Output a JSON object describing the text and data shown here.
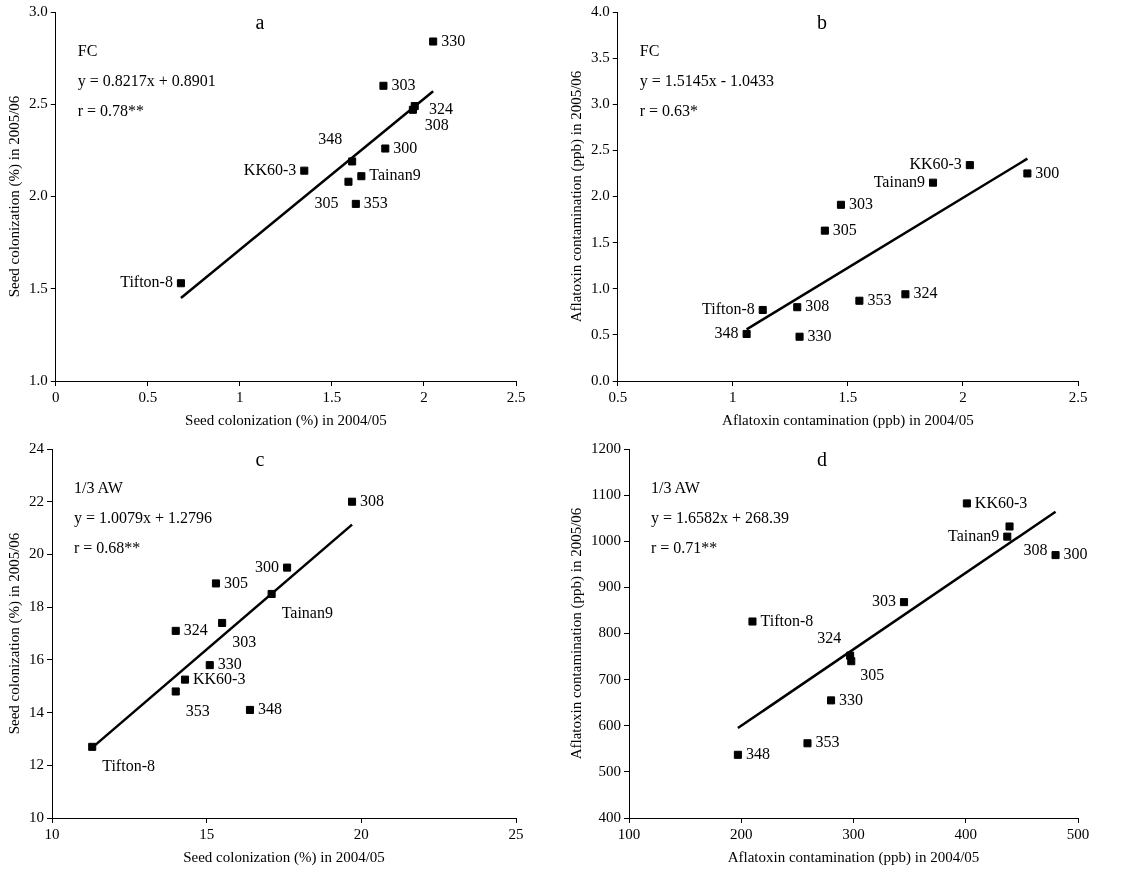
{
  "chart_data": [
    {
      "type": "scatter",
      "title": "a",
      "xlabel": "Seed colonization (%) in 2004/05",
      "ylabel": "Seed colonization (%) in 2005/06",
      "xlim": [
        0,
        2.5
      ],
      "xticks": [
        0,
        0.5,
        1,
        1.5,
        2,
        2.5
      ],
      "ylim": [
        1.0,
        3.0
      ],
      "yticks": [
        {
          "value": 1,
          "label": "1.0"
        },
        1.5,
        {
          "value": 2,
          "label": "2.0"
        },
        2.5,
        {
          "value": 3,
          "label": "3.0"
        }
      ],
      "grid": false,
      "legend": false,
      "series": [
        {
          "type": "scatter",
          "marker": "square",
          "color": "#000000",
          "x": [
            0.68,
            1.35,
            1.61,
            1.59,
            1.66,
            1.63,
            1.79,
            1.78,
            1.95,
            1.94,
            2.05
          ],
          "values": [
            1.53,
            2.14,
            2.19,
            2.08,
            2.11,
            1.96,
            2.26,
            2.6,
            2.49,
            2.47,
            2.84
          ]
        },
        {
          "type": "line",
          "marker": "none",
          "line_style": "solid",
          "color": "#000000",
          "x": [
            0.68,
            2.05
          ],
          "values": [
            1.45,
            2.57
          ]
        }
      ],
      "annotations": [
        "FC",
        "y = 0.8217x + 0.8901",
        "r = 0.78**",
        {
          "text": "Tifton-8",
          "x": 0.68,
          "y": 1.53
        },
        {
          "text": "KK60-3",
          "x": 1.35,
          "y": 2.14
        },
        {
          "text": "348",
          "x": 1.61,
          "y": 2.19
        },
        {
          "text": "305",
          "x": 1.59,
          "y": 2.08
        },
        {
          "text": "Tainan9",
          "x": 1.66,
          "y": 2.11
        },
        {
          "text": "353",
          "x": 1.63,
          "y": 1.96
        },
        {
          "text": "300",
          "x": 1.79,
          "y": 2.26
        },
        {
          "text": "303",
          "x": 1.78,
          "y": 2.6
        },
        {
          "text": "308",
          "x": 1.95,
          "y": 2.49
        },
        {
          "text": "324",
          "x": 1.94,
          "y": 2.47
        },
        {
          "text": "330",
          "x": 2.05,
          "y": 2.84
        }
      ]
    },
    {
      "type": "scatter",
      "title": "b",
      "xlabel": "Aflatoxin contamination (ppb) in 2004/05",
      "ylabel": "Aflatoxin contamination (ppb) in 2005/06",
      "xlim": [
        0.5,
        2.5
      ],
      "xticks": [
        0.5,
        1,
        1.5,
        2,
        2.5
      ],
      "ylim": [
        0,
        4
      ],
      "yticks": [
        {
          "value": 0,
          "label": "0.0"
        },
        0.5,
        {
          "value": 1,
          "label": "1.0"
        },
        1.5,
        {
          "value": 2,
          "label": "2.0"
        },
        2.5,
        {
          "value": 3,
          "label": "3.0"
        },
        3.5,
        {
          "value": 4,
          "label": "4.0"
        }
      ],
      "grid": false,
      "legend": false,
      "series": [
        {
          "type": "scatter",
          "marker": "square",
          "color": "#000000",
          "x": [
            1.13,
            1.06,
            1.28,
            1.29,
            1.4,
            1.47,
            1.55,
            1.75,
            1.87,
            2.03,
            2.28
          ],
          "values": [
            0.77,
            0.51,
            0.8,
            0.48,
            1.63,
            1.91,
            0.87,
            0.94,
            2.15,
            2.34,
            2.25
          ]
        },
        {
          "type": "line",
          "marker": "none",
          "line_style": "solid",
          "color": "#000000",
          "x": [
            1.06,
            2.28
          ],
          "values": [
            0.56,
            2.41
          ]
        }
      ],
      "annotations": [
        "FC",
        "y = 1.5145x - 1.0433",
        "r = 0.63*",
        {
          "text": "Tifton-8",
          "x": 1.13,
          "y": 0.77
        },
        {
          "text": "348",
          "x": 1.06,
          "y": 0.51
        },
        {
          "text": "308",
          "x": 1.28,
          "y": 0.8
        },
        {
          "text": "330",
          "x": 1.29,
          "y": 0.48
        },
        {
          "text": "305",
          "x": 1.4,
          "y": 1.63
        },
        {
          "text": "303",
          "x": 1.47,
          "y": 1.91
        },
        {
          "text": "353",
          "x": 1.55,
          "y": 0.87
        },
        {
          "text": "324",
          "x": 1.75,
          "y": 0.94
        },
        {
          "text": "Tainan9",
          "x": 1.87,
          "y": 2.15
        },
        {
          "text": "KK60-3",
          "x": 2.03,
          "y": 2.34
        },
        {
          "text": "300",
          "x": 2.28,
          "y": 2.25
        }
      ]
    },
    {
      "type": "scatter",
      "title": "c",
      "xlabel": "Seed colonization (%) in 2004/05",
      "ylabel": "Seed colonization (%) in 2005/06",
      "xlim": [
        10,
        25
      ],
      "xticks": [
        10,
        15,
        20,
        25
      ],
      "ylim": [
        10,
        24
      ],
      "yticks": [
        10,
        12,
        14,
        16,
        18,
        20,
        22,
        24
      ],
      "grid": false,
      "legend": false,
      "series": [
        {
          "type": "scatter",
          "marker": "square",
          "color": "#000000",
          "x": [
            11.3,
            14.0,
            14.3,
            14.0,
            15.1,
            15.3,
            15.5,
            16.4,
            17.1,
            17.6,
            19.7
          ],
          "values": [
            12.7,
            14.8,
            15.25,
            17.1,
            15.8,
            18.9,
            17.4,
            14.1,
            18.5,
            19.5,
            22.0
          ]
        },
        {
          "type": "line",
          "marker": "none",
          "line_style": "solid",
          "color": "#000000",
          "x": [
            11.3,
            19.7
          ],
          "values": [
            12.67,
            21.13
          ]
        }
      ],
      "annotations": [
        "1/3 AW",
        "y = 1.0079x + 1.2796",
        "r = 0.68**",
        {
          "text": "Tifton-8",
          "x": 11.3,
          "y": 12.7
        },
        {
          "text": "353",
          "x": 14.0,
          "y": 14.8
        },
        {
          "text": "KK60-3",
          "x": 14.3,
          "y": 15.25
        },
        {
          "text": "324",
          "x": 14.0,
          "y": 17.1
        },
        {
          "text": "330",
          "x": 15.1,
          "y": 15.8
        },
        {
          "text": "305",
          "x": 15.3,
          "y": 18.9
        },
        {
          "text": "303",
          "x": 15.5,
          "y": 17.4
        },
        {
          "text": "348",
          "x": 16.4,
          "y": 14.1
        },
        {
          "text": "Tainan9",
          "x": 17.1,
          "y": 18.5
        },
        {
          "text": "300",
          "x": 17.6,
          "y": 19.5
        },
        {
          "text": "308",
          "x": 19.7,
          "y": 22.0
        }
      ]
    },
    {
      "type": "scatter",
      "title": "d",
      "xlabel": "Aflatoxin contamination (ppb) in 2004/05",
      "ylabel": "Aflatoxin contamination (ppb) in 2005/06",
      "xlim": [
        100,
        500
      ],
      "xticks": [
        100,
        200,
        300,
        400,
        500
      ],
      "ylim": [
        400,
        1200
      ],
      "yticks": [
        400,
        500,
        600,
        700,
        800,
        900,
        1000,
        1100,
        1200
      ],
      "grid": false,
      "legend": false,
      "series": [
        {
          "type": "scatter",
          "marker": "square",
          "color": "#000000",
          "x": [
            197,
            210,
            259,
            280,
            297,
            298,
            345,
            401,
            437,
            439,
            480
          ],
          "values": [
            537,
            826,
            562,
            655,
            752,
            740,
            868,
            1082,
            1010,
            1032,
            970
          ]
        },
        {
          "type": "line",
          "marker": "none",
          "line_style": "solid",
          "color": "#000000",
          "x": [
            197,
            480
          ],
          "values": [
            595,
            1064
          ]
        }
      ],
      "annotations": [
        "1/3 AW",
        "y = 1.6582x + 268.39",
        "r = 0.71**",
        {
          "text": "348",
          "x": 197,
          "y": 537
        },
        {
          "text": "Tifton-8",
          "x": 210,
          "y": 826
        },
        {
          "text": "353",
          "x": 259,
          "y": 562
        },
        {
          "text": "330",
          "x": 280,
          "y": 655
        },
        {
          "text": "305",
          "x": 297,
          "y": 752
        },
        {
          "text": "324",
          "x": 298,
          "y": 740
        },
        {
          "text": "303",
          "x": 345,
          "y": 868
        },
        {
          "text": "KK60-3",
          "x": 401,
          "y": 1082
        },
        {
          "text": "Tainan9",
          "x": 437,
          "y": 1010
        },
        {
          "text": "308",
          "x": 439,
          "y": 1032
        },
        {
          "text": "300",
          "x": 480,
          "y": 970
        }
      ]
    }
  ]
}
